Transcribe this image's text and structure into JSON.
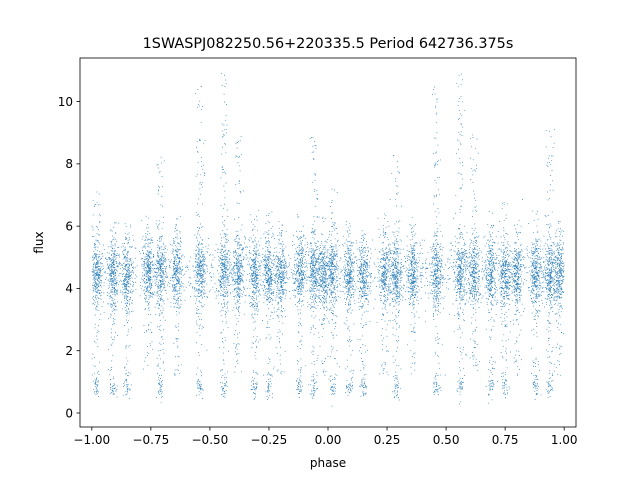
{
  "chart_data": {
    "type": "scatter",
    "title": "1SWASPJ082250.56+220335.5 Period 642736.375s",
    "xlabel": "phase",
    "ylabel": "flux",
    "xlim": [
      -1.05,
      1.05
    ],
    "ylim": [
      -0.45,
      11.4
    ],
    "xticks": [
      -1.0,
      -0.75,
      -0.5,
      -0.25,
      0.0,
      0.25,
      0.5,
      0.75,
      1.0
    ],
    "xtick_labels": [
      "−1.00",
      "−0.75",
      "−0.50",
      "−0.25",
      "0.00",
      "0.25",
      "0.50",
      "0.75",
      "1.00"
    ],
    "yticks": [
      0,
      2,
      4,
      6,
      8,
      10
    ],
    "ytick_labels": [
      "0",
      "2",
      "4",
      "6",
      "8",
      "10"
    ],
    "grid": false,
    "legend": "none",
    "point_color": "#1f77b4",
    "phase_range": [
      -1.0,
      1.0
    ],
    "baseline_flux": 4.5,
    "baseline_spread": 0.55,
    "low_state_flux": 0.85,
    "low_state_spread": 0.2,
    "max_flux": 10.9,
    "min_flux": 0.15,
    "observation_clusters": [
      {
        "phase": 0.02,
        "low": true,
        "high": 7.2
      },
      {
        "phase": 0.09,
        "low": true,
        "high": 6.2
      },
      {
        "phase": 0.15,
        "low": true,
        "high": 5.8
      },
      {
        "phase": 0.24,
        "low": false,
        "high": 6.4
      },
      {
        "phase": 0.29,
        "low": true,
        "high": 8.3
      },
      {
        "phase": 0.36,
        "low": false,
        "high": 6.3
      },
      {
        "phase": 0.46,
        "low": true,
        "high": 10.5
      },
      {
        "phase": 0.56,
        "low": true,
        "high": 10.9
      },
      {
        "phase": 0.62,
        "low": false,
        "high": 9.0
      },
      {
        "phase": 0.69,
        "low": true,
        "high": 6.6
      },
      {
        "phase": 0.75,
        "low": true,
        "high": 6.8
      },
      {
        "phase": 0.8,
        "low": false,
        "high": 6.2
      },
      {
        "phase": 0.88,
        "low": true,
        "high": 6.5
      },
      {
        "phase": 0.94,
        "low": true,
        "high": 9.1
      },
      {
        "phase": 0.98,
        "low": false,
        "high": 6.3
      }
    ]
  }
}
